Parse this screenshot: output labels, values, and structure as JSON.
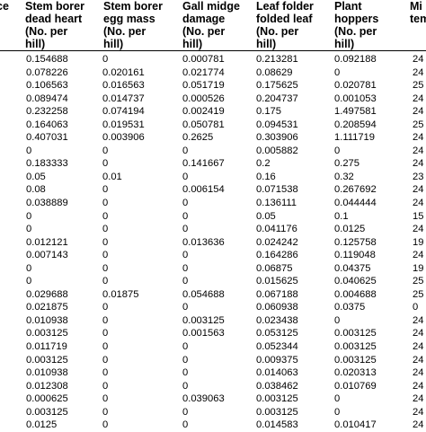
{
  "headers": [
    {
      "lines": [
        "ce"
      ]
    },
    {
      "lines": [
        "Stem borer",
        "dead heart",
        "(No. per",
        "hill)"
      ]
    },
    {
      "lines": [
        "Stem borer",
        "egg mass",
        "(No. per",
        "hill)"
      ]
    },
    {
      "lines": [
        "Gall midge",
        "damage",
        "(No. per",
        "hill)"
      ]
    },
    {
      "lines": [
        "Leaf folder",
        "folded leaf",
        "(No. per",
        "hill)"
      ]
    },
    {
      "lines": [
        "Plant",
        "hoppers",
        "(No. per",
        "hill)"
      ]
    },
    {
      "lines": [
        "Mi",
        "tem"
      ]
    }
  ],
  "rows": [
    [
      "",
      "0.154688",
      "0",
      "0.000781",
      "0.213281",
      "0.092188",
      "24"
    ],
    [
      "",
      "0.078226",
      "0.020161",
      "0.021774",
      "0.08629",
      "0",
      "24"
    ],
    [
      "",
      "0.106563",
      "0.016563",
      "0.051719",
      "0.175625",
      "0.020781",
      "25"
    ],
    [
      "",
      "0.089474",
      "0.014737",
      "0.000526",
      "0.204737",
      "0.001053",
      "24"
    ],
    [
      "",
      "0.232258",
      "0.074194",
      "0.002419",
      "0.175",
      "1.497581",
      "24"
    ],
    [
      "",
      "0.164063",
      "0.019531",
      "0.050781",
      "0.094531",
      "0.208594",
      "25"
    ],
    [
      "",
      "0.407031",
      "0.003906",
      "0.2625",
      "0.303906",
      "1.111719",
      "24"
    ],
    [
      "",
      "0",
      "0",
      "0",
      "0.005882",
      "0",
      "24"
    ],
    [
      "",
      "0.183333",
      "0",
      "0.141667",
      "0.2",
      "0.275",
      "24"
    ],
    [
      "",
      "0.05",
      "0.01",
      "0",
      "0.16",
      "0.32",
      "23"
    ],
    [
      "",
      "0.08",
      "0",
      "0.006154",
      "0.071538",
      "0.267692",
      "24"
    ],
    [
      "",
      "0.038889",
      "0",
      "0",
      "0.136111",
      "0.044444",
      "24"
    ],
    [
      "",
      "0",
      "0",
      "0",
      "0.05",
      "0.1",
      "15"
    ],
    [
      "",
      "0",
      "0",
      "0",
      "0.041176",
      "0.0125",
      "24"
    ],
    [
      "",
      "0.012121",
      "0",
      "0.013636",
      "0.024242",
      "0.125758",
      "19"
    ],
    [
      "",
      "0.007143",
      "0",
      "0",
      "0.164286",
      "0.119048",
      "24"
    ],
    [
      "",
      "0",
      "0",
      "0",
      "0.06875",
      "0.04375",
      "19"
    ],
    [
      "",
      "0",
      "0",
      "0",
      "0.015625",
      "0.040625",
      "25"
    ],
    [
      "",
      "0.029688",
      "0.01875",
      "0.054688",
      "0.067188",
      "0.004688",
      "25"
    ],
    [
      "",
      "0.021875",
      "0",
      "0",
      "0.060938",
      "0.0375",
      "0"
    ],
    [
      "",
      "0.010938",
      "0",
      "0.003125",
      "0.023438",
      "0",
      "24"
    ],
    [
      "",
      "0.003125",
      "0",
      "0.001563",
      "0.053125",
      "0.003125",
      "24"
    ],
    [
      "",
      "0.011719",
      "0",
      "0",
      "0.052344",
      "0.003125",
      "24"
    ],
    [
      "",
      "0.003125",
      "0",
      "0",
      "0.009375",
      "0.003125",
      "24"
    ],
    [
      "",
      "0.010938",
      "0",
      "0",
      "0.014063",
      "0.020313",
      "24"
    ],
    [
      "",
      "0.012308",
      "0",
      "0",
      "0.038462",
      "0.010769",
      "24"
    ],
    [
      "",
      "0.000625",
      "0",
      "0.039063",
      "0.003125",
      "0",
      "24"
    ],
    [
      "",
      "0.003125",
      "0",
      "0",
      "0.003125",
      "0",
      "24"
    ],
    [
      "",
      "0.0125",
      "0",
      "0",
      "0.014583",
      "0.010417",
      "24"
    ]
  ]
}
